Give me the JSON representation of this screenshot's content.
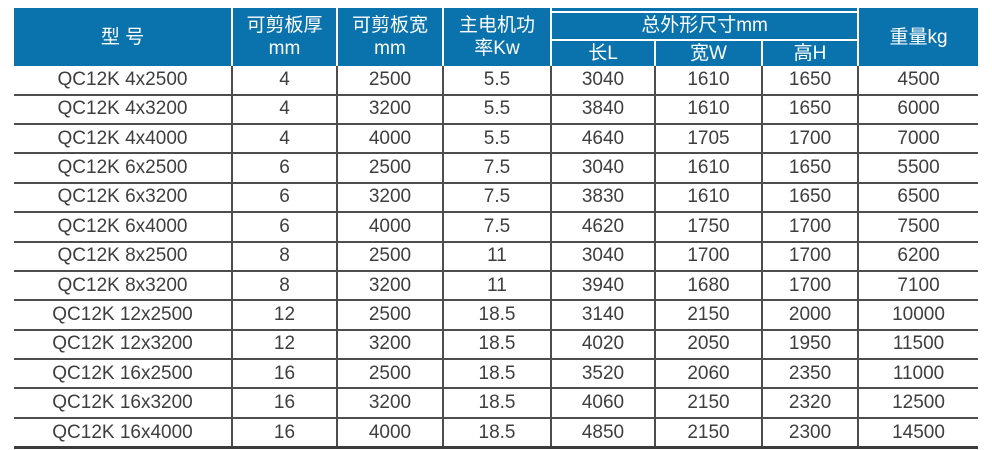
{
  "colors": {
    "header_bg": "#0a72ad",
    "header_text": "#ffffff",
    "body_text": "#3e3e3e",
    "grid_line": "#4d4d4d",
    "page_bg": "#ffffff"
  },
  "header": {
    "model": "型 号",
    "thickness_line1": "可剪板厚",
    "thickness_line2": "mm",
    "width_line1": "可剪板宽",
    "width_line2": "mm",
    "power_line1": "主电机功",
    "power_line2": "率Kw",
    "dims_group": "总外形尺寸mm",
    "dims_length": "长L",
    "dims_width": "宽W",
    "dims_height": "高H",
    "weight": "重量kg"
  },
  "chart_data": {
    "type": "table",
    "columns": [
      "型号",
      "可剪板厚mm",
      "可剪板宽mm",
      "主电机功率Kw",
      "长L",
      "宽W",
      "高H",
      "重量kg"
    ],
    "column_groups": [
      {
        "label": "总外形尺寸mm",
        "columns": [
          "长L",
          "宽W",
          "高H"
        ]
      }
    ],
    "rows": [
      [
        "QC12K 4x2500",
        "4",
        "2500",
        "5.5",
        "3040",
        "1610",
        "1650",
        "4500"
      ],
      [
        "QC12K 4x3200",
        "4",
        "3200",
        "5.5",
        "3840",
        "1610",
        "1650",
        "6000"
      ],
      [
        "QC12K 4x4000",
        "4",
        "4000",
        "5.5",
        "4640",
        "1705",
        "1700",
        "7000"
      ],
      [
        "QC12K 6x2500",
        "6",
        "2500",
        "7.5",
        "3040",
        "1610",
        "1650",
        "5500"
      ],
      [
        "QC12K 6x3200",
        "6",
        "3200",
        "7.5",
        "3830",
        "1610",
        "1650",
        "6500"
      ],
      [
        "QC12K 6x4000",
        "6",
        "4000",
        "7.5",
        "4620",
        "1750",
        "1700",
        "7500"
      ],
      [
        "QC12K 8x2500",
        "8",
        "2500",
        "11",
        "3040",
        "1700",
        "1700",
        "6200"
      ],
      [
        "QC12K 8x3200",
        "8",
        "3200",
        "11",
        "3940",
        "1680",
        "1700",
        "7100"
      ],
      [
        "QC12K 12x2500",
        "12",
        "2500",
        "18.5",
        "3140",
        "2150",
        "2000",
        "10000"
      ],
      [
        "QC12K 12x3200",
        "12",
        "3200",
        "18.5",
        "4020",
        "2050",
        "1950",
        "11500"
      ],
      [
        "QC12K 16x2500",
        "16",
        "2500",
        "18.5",
        "3520",
        "2060",
        "2350",
        "11000"
      ],
      [
        "QC12K 16x3200",
        "16",
        "3200",
        "18.5",
        "4060",
        "2150",
        "2320",
        "12500"
      ],
      [
        "QC12K 16x4000",
        "16",
        "4000",
        "18.5",
        "4850",
        "2150",
        "2300",
        "14500"
      ]
    ]
  }
}
